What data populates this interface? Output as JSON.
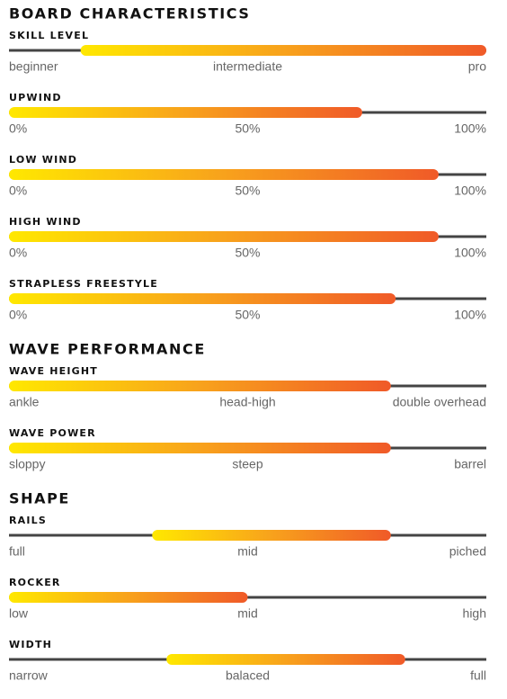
{
  "sections": [
    {
      "title": "BOARD CHARACTERISTICS",
      "items": [
        {
          "label": "SKILL LEVEL",
          "scale": [
            "beginner",
            "intermediate",
            "pro"
          ],
          "start": 15,
          "end": 100
        },
        {
          "label": "UPWIND",
          "scale": [
            "0%",
            "50%",
            "100%"
          ],
          "start": 0,
          "end": 74
        },
        {
          "label": "LOW WIND",
          "scale": [
            "0%",
            "50%",
            "100%"
          ],
          "start": 0,
          "end": 90
        },
        {
          "label": "HIGH WIND",
          "scale": [
            "0%",
            "50%",
            "100%"
          ],
          "start": 0,
          "end": 90
        },
        {
          "label": "STRAPLESS FREESTYLE",
          "scale": [
            "0%",
            "50%",
            "100%"
          ],
          "start": 0,
          "end": 81
        }
      ]
    },
    {
      "title": "WAVE PERFORMANCE",
      "items": [
        {
          "label": "WAVE HEIGHT",
          "scale": [
            "ankle",
            "head-high",
            "double overhead"
          ],
          "start": 0,
          "end": 80
        },
        {
          "label": "WAVE POWER",
          "scale": [
            "sloppy",
            "steep",
            "barrel"
          ],
          "start": 0,
          "end": 80
        }
      ]
    },
    {
      "title": "SHAPE",
      "items": [
        {
          "label": "RAILS",
          "scale": [
            "full",
            "mid",
            "piched"
          ],
          "start": 30,
          "end": 80
        },
        {
          "label": "ROCKER",
          "scale": [
            "low",
            "mid",
            "high"
          ],
          "start": 0,
          "end": 50
        },
        {
          "label": "WIDTH",
          "scale": [
            "narrow",
            "balaced",
            "full"
          ],
          "start": 33,
          "end": 83
        }
      ]
    }
  ]
}
